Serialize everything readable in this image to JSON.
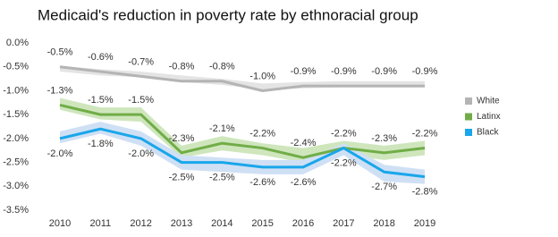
{
  "chart_data": {
    "type": "line",
    "title": "Medicaid's reduction in poverty rate by ethnoracial group",
    "categories": [
      "2010",
      "2011",
      "2012",
      "2013",
      "2014",
      "2015",
      "2016",
      "2017",
      "2018",
      "2019"
    ],
    "ylim": [
      -3.5,
      0
    ],
    "yticks": [
      {
        "value": 0,
        "label": "0.0%"
      },
      {
        "value": -0.5,
        "label": "-0.5%"
      },
      {
        "value": -1,
        "label": "-1.0%"
      },
      {
        "value": -1.5,
        "label": "-1.5%"
      },
      {
        "value": -2,
        "label": "-2.0%"
      },
      {
        "value": -2.5,
        "label": "-2.5%"
      },
      {
        "value": -3,
        "label": "-3.0%"
      },
      {
        "value": -3.5,
        "label": "-3.5%"
      }
    ],
    "grid": false,
    "legend": "right",
    "series": [
      {
        "name": "White",
        "color": "#b4b4b4",
        "band_color": "#e4e4e4",
        "label_side": "above",
        "values": [
          -0.5,
          -0.6,
          -0.7,
          -0.8,
          -0.8,
          -1.0,
          -0.9,
          -0.9,
          -0.9,
          -0.9
        ],
        "value_labels": [
          "-0.5%",
          "-0.6%",
          "-0.7%",
          "-0.8%",
          "-0.8%",
          "-1.0%",
          "-0.9%",
          "-0.9%",
          "-0.9%",
          "-0.9%"
        ],
        "upper": [
          -0.48,
          -0.55,
          -0.6,
          -0.68,
          -0.75,
          -0.85,
          -0.82,
          -0.8,
          -0.8,
          -0.8
        ],
        "lower": [
          -0.6,
          -0.68,
          -0.72,
          -0.82,
          -0.88,
          -0.98,
          -0.95,
          -0.93,
          -0.93,
          -0.93
        ]
      },
      {
        "name": "Latinx",
        "color": "#70ad47",
        "band_color": "#cfe6bd",
        "label_side": "above",
        "values": [
          -1.3,
          -1.5,
          -1.5,
          -2.3,
          -2.1,
          -2.2,
          -2.4,
          -2.2,
          -2.3,
          -2.2
        ],
        "value_labels": [
          "-1.3%",
          "-1.5%",
          "-1.5%",
          "-2.3%",
          "-2.1%",
          "-2.2%",
          "-2.4%",
          "-2.2%",
          "-2.3%",
          "-2.2%"
        ],
        "upper": [
          -1.15,
          -1.35,
          -1.35,
          -2.15,
          -1.95,
          -2.1,
          -2.2,
          -2.05,
          -2.15,
          -2.05
        ],
        "lower": [
          -1.4,
          -1.6,
          -1.65,
          -2.4,
          -2.25,
          -2.35,
          -2.5,
          -2.35,
          -2.45,
          -2.35
        ]
      },
      {
        "name": "Black",
        "color": "#19a6ea",
        "band_color": "#cfe0f5",
        "label_side": "below",
        "values": [
          -2.0,
          -1.8,
          -2.0,
          -2.5,
          -2.5,
          -2.6,
          -2.6,
          -2.2,
          -2.7,
          -2.8
        ],
        "value_labels": [
          "-2.0%",
          "-1.8%",
          "-2.0%",
          "-2.5%",
          "-2.5%",
          "-2.6%",
          "-2.6%",
          "-2.2%",
          "-2.7%",
          "-2.8%"
        ],
        "upper": [
          -1.85,
          -1.65,
          -1.85,
          -2.35,
          -2.4,
          -2.45,
          -2.45,
          -2.1,
          -2.55,
          -2.65
        ],
        "lower": [
          -2.1,
          -1.9,
          -2.15,
          -2.65,
          -2.7,
          -2.75,
          -2.75,
          -2.35,
          -2.9,
          -2.95
        ]
      }
    ]
  }
}
